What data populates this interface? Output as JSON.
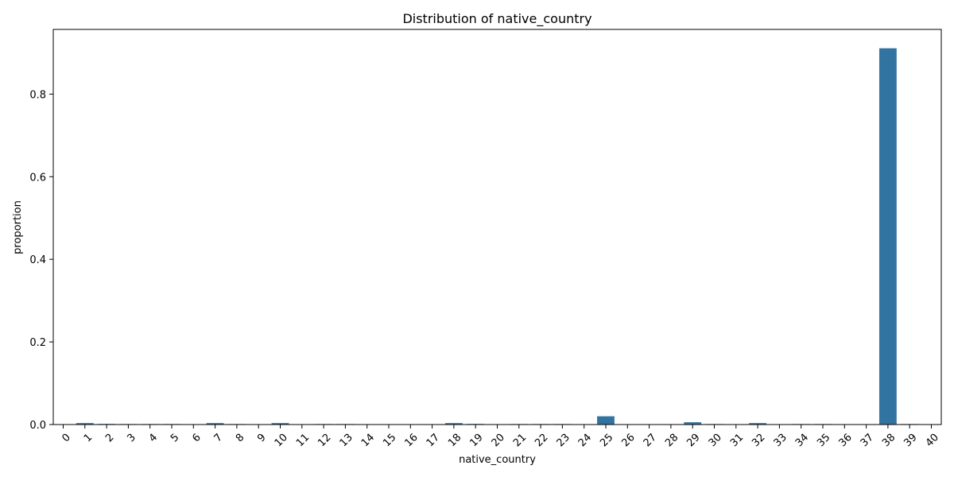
{
  "chart_data": {
    "type": "bar",
    "title": "Distribution of native_country",
    "xlabel": "native_country",
    "ylabel": "proportion",
    "categories": [
      "0",
      "1",
      "2",
      "3",
      "4",
      "5",
      "6",
      "7",
      "8",
      "9",
      "10",
      "11",
      "12",
      "13",
      "14",
      "15",
      "16",
      "17",
      "18",
      "19",
      "20",
      "21",
      "22",
      "23",
      "24",
      "25",
      "26",
      "27",
      "28",
      "29",
      "30",
      "31",
      "32",
      "33",
      "34",
      "35",
      "36",
      "37",
      "38",
      "39",
      "40"
    ],
    "values": [
      0.0005,
      0.0035,
      0.0015,
      0.0012,
      0.0012,
      0.0012,
      0.0003,
      0.0035,
      0.0012,
      0.0003,
      0.0035,
      0.0003,
      0.0012,
      0.0012,
      0.0003,
      0.0003,
      0.0003,
      0.0003,
      0.0035,
      0.0015,
      0.0003,
      0.0012,
      0.0012,
      0.0012,
      0.0003,
      0.02,
      0.0003,
      0.0003,
      0.0003,
      0.0055,
      0.0012,
      0.0003,
      0.0035,
      0.0003,
      0.0012,
      0.0012,
      0.0003,
      0.0003,
      0.911,
      0.0012,
      0.0003
    ],
    "yticks": [
      0.0,
      0.2,
      0.4,
      0.6,
      0.8
    ],
    "ytick_labels": [
      "0.0",
      "0.2",
      "0.4",
      "0.6",
      "0.8"
    ],
    "ylim": [
      0,
      0.9566
    ],
    "grid": false,
    "bar_color": "#3274a1"
  }
}
